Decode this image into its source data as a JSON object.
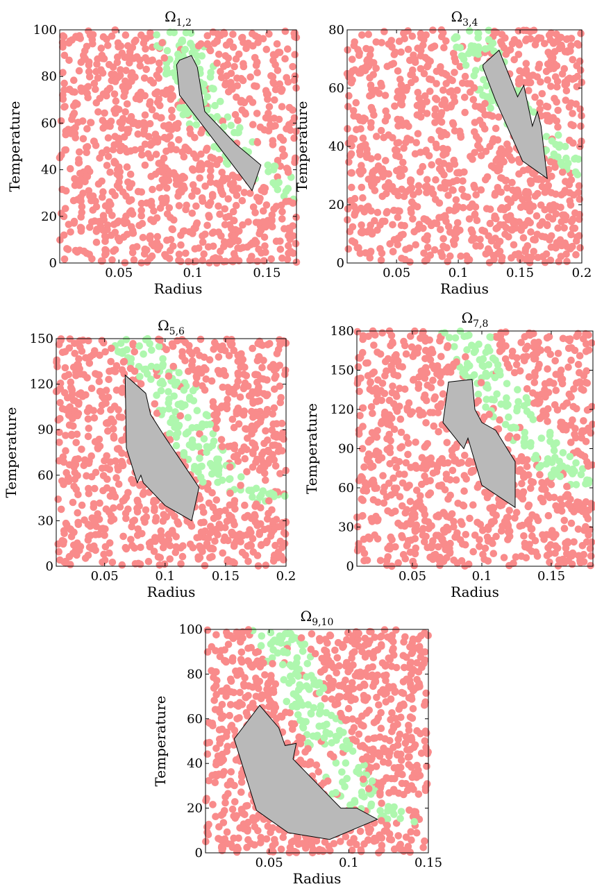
{
  "chart_data": [
    {
      "type": "scatter",
      "title": "Ω",
      "title_subscript": "1,2",
      "xlabel": "Radius",
      "ylabel": "Temperature",
      "xlim": [
        0.01,
        0.17
      ],
      "ylim": [
        0,
        100
      ],
      "xticks": [
        0.05,
        0.1,
        0.15
      ],
      "xtick_labels": [
        "0.05",
        "0.1",
        "0.15"
      ],
      "yticks": [
        0,
        20,
        40,
        60,
        80,
        100
      ],
      "ytick_labels": [
        "0",
        "20",
        "40",
        "60",
        "80",
        "100"
      ],
      "grid": false,
      "series_colors": [
        "#f98b8b",
        "#aef7ae"
      ],
      "region_color": "#b9b9b9",
      "band": {
        "upper": [
          [
            0.07,
            100
          ],
          [
            0.095,
            60
          ],
          [
            0.125,
            40
          ],
          [
            0.17,
            25
          ]
        ],
        "width": 0.035
      },
      "polygon": [
        [
          0.091,
          87
        ],
        [
          0.099,
          89
        ],
        [
          0.103,
          84
        ],
        [
          0.108,
          65
        ],
        [
          0.129,
          51
        ],
        [
          0.146,
          42
        ],
        [
          0.14,
          31
        ],
        [
          0.127,
          42
        ],
        [
          0.091,
          72
        ],
        [
          0.089,
          85
        ]
      ]
    },
    {
      "type": "scatter",
      "title": "Ω",
      "title_subscript": "3,4",
      "xlabel": "Radius",
      "ylabel": "Temperature",
      "xlim": [
        0.01,
        0.2
      ],
      "ylim": [
        0,
        80
      ],
      "xticks": [
        0.05,
        0.1,
        0.15,
        0.2
      ],
      "xtick_labels": [
        "0.05",
        "0.1",
        "0.15",
        "0.2"
      ],
      "yticks": [
        0,
        20,
        40,
        60,
        80
      ],
      "ytick_labels": [
        "0",
        "20",
        "40",
        "60",
        "80"
      ],
      "grid": false,
      "series_colors": [
        "#f98b8b",
        "#aef7ae"
      ],
      "region_color": "#b9b9b9",
      "band": {
        "upper": [
          [
            0.09,
            80
          ],
          [
            0.12,
            55
          ],
          [
            0.16,
            40
          ],
          [
            0.2,
            28
          ]
        ],
        "width": 0.035
      },
      "polygon": [
        [
          0.12,
          68
        ],
        [
          0.133,
          73
        ],
        [
          0.148,
          57
        ],
        [
          0.153,
          61
        ],
        [
          0.16,
          47
        ],
        [
          0.164,
          52
        ],
        [
          0.167,
          47
        ],
        [
          0.172,
          29
        ],
        [
          0.152,
          35
        ],
        [
          0.13,
          56
        ],
        [
          0.12,
          67
        ]
      ]
    },
    {
      "type": "scatter",
      "title": "Ω",
      "title_subscript": "5,6",
      "xlabel": "Radius",
      "ylabel": "Temperature",
      "xlim": [
        0.01,
        0.2
      ],
      "ylim": [
        0,
        150
      ],
      "xticks": [
        0.05,
        0.1,
        0.15,
        0.2
      ],
      "xtick_labels": [
        "0.05",
        "0.1",
        "0.15",
        "0.2"
      ],
      "yticks": [
        0,
        30,
        60,
        90,
        120,
        150
      ],
      "ytick_labels": [
        "0",
        "30",
        "60",
        "90",
        "120",
        "150"
      ],
      "grid": false,
      "series_colors": [
        "#f98b8b",
        "#aef7ae"
      ],
      "region_color": "#b9b9b9",
      "band": {
        "upper": [
          [
            0.05,
            150
          ],
          [
            0.085,
            120
          ],
          [
            0.1,
            90
          ],
          [
            0.13,
            55
          ],
          [
            0.2,
            35
          ]
        ],
        "width": 0.04
      },
      "polygon": [
        [
          0.067,
          126
        ],
        [
          0.084,
          114
        ],
        [
          0.088,
          100
        ],
        [
          0.1,
          85
        ],
        [
          0.128,
          52
        ],
        [
          0.122,
          30
        ],
        [
          0.1,
          40
        ],
        [
          0.082,
          55
        ],
        [
          0.08,
          60
        ],
        [
          0.077,
          55
        ],
        [
          0.068,
          78
        ],
        [
          0.067,
          126
        ]
      ]
    },
    {
      "type": "scatter",
      "title": "Ω",
      "title_subscript": "7,8",
      "xlabel": "Radius",
      "ylabel": "Temperature",
      "xlim": [
        0.01,
        0.18
      ],
      "ylim": [
        0,
        180
      ],
      "xticks": [
        0.05,
        0.1,
        0.15
      ],
      "xtick_labels": [
        "0.05",
        "0.1",
        "0.15"
      ],
      "yticks": [
        0,
        30,
        60,
        90,
        120,
        150,
        180
      ],
      "ytick_labels": [
        "0",
        "30",
        "60",
        "90",
        "120",
        "150",
        "180"
      ],
      "grid": false,
      "series_colors": [
        "#f98b8b",
        "#aef7ae"
      ],
      "region_color": "#b9b9b9",
      "band": {
        "upper": [
          [
            0.07,
            180
          ],
          [
            0.09,
            140
          ],
          [
            0.11,
            110
          ],
          [
            0.14,
            75
          ],
          [
            0.18,
            50
          ]
        ],
        "width": 0.035
      },
      "polygon": [
        [
          0.076,
          141
        ],
        [
          0.093,
          143
        ],
        [
          0.095,
          120
        ],
        [
          0.1,
          110
        ],
        [
          0.11,
          104
        ],
        [
          0.124,
          80
        ],
        [
          0.124,
          45
        ],
        [
          0.1,
          62
        ],
        [
          0.09,
          98
        ],
        [
          0.087,
          90
        ],
        [
          0.072,
          110
        ],
        [
          0.076,
          141
        ]
      ]
    },
    {
      "type": "scatter",
      "title": "Ω",
      "title_subscript": "9,10",
      "xlabel": "Radius",
      "ylabel": "Temperature",
      "xlim": [
        0.01,
        0.15
      ],
      "ylim": [
        0,
        100
      ],
      "xticks": [
        0.05,
        0.1,
        0.15
      ],
      "xtick_labels": [
        "0.05",
        "0.1",
        "0.15"
      ],
      "yticks": [
        0,
        20,
        40,
        60,
        80,
        100
      ],
      "ytick_labels": [
        "0",
        "20",
        "40",
        "60",
        "80",
        "100"
      ],
      "grid": false,
      "series_colors": [
        "#f98b8b",
        "#aef7ae"
      ],
      "region_color": "#b9b9b9",
      "band": {
        "upper": [
          [
            0.038,
            100
          ],
          [
            0.065,
            60
          ],
          [
            0.09,
            25
          ],
          [
            0.11,
            15
          ],
          [
            0.15,
            12
          ]
        ],
        "width": 0.03
      },
      "polygon": [
        [
          0.028,
          51
        ],
        [
          0.044,
          66
        ],
        [
          0.056,
          56
        ],
        [
          0.06,
          48
        ],
        [
          0.067,
          49
        ],
        [
          0.065,
          42
        ],
        [
          0.095,
          20
        ],
        [
          0.105,
          20
        ],
        [
          0.118,
          15
        ],
        [
          0.088,
          6
        ],
        [
          0.062,
          9
        ],
        [
          0.042,
          19
        ],
        [
          0.028,
          51
        ]
      ]
    }
  ]
}
